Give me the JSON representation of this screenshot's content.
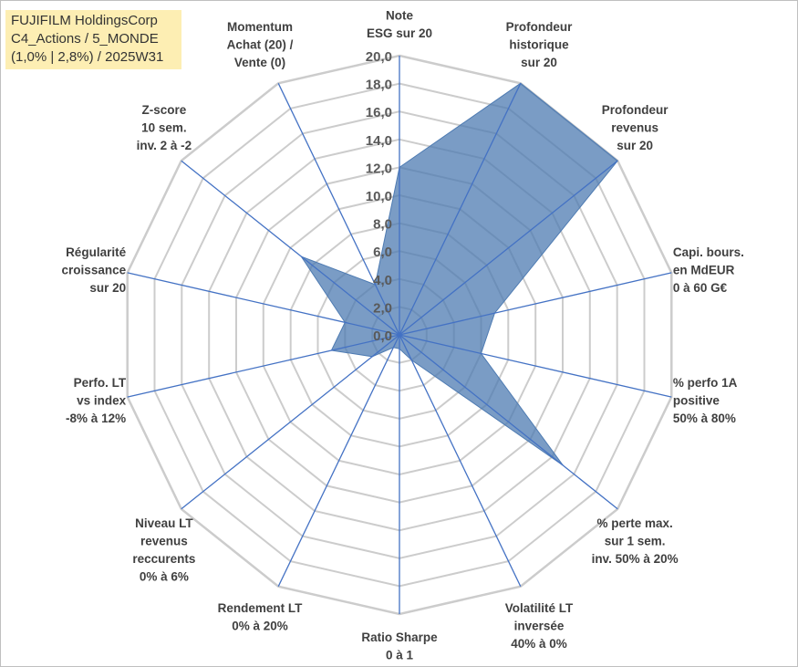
{
  "title_lines": [
    "FUJIFILM HoldingsCorp",
    "C4_Actions / 5_MONDE",
    "(1,0% | 2,8%) / 2025W31"
  ],
  "colors": {
    "fill": "#4e7bb2",
    "fill_opacity": 0.75,
    "spoke": "#4472c4",
    "ring": "#cccccc",
    "title_bg": "#fdeeb3"
  },
  "chart_data": {
    "type": "radar",
    "grid": true,
    "rmin": 0,
    "rmax": 20,
    "tick_labels": [
      "0,0",
      "2,0",
      "4,0",
      "6,0",
      "8,0",
      "10,0",
      "12,0",
      "14,0",
      "16,0",
      "18,0",
      "20,0"
    ],
    "axes": [
      {
        "label": [
          "Note",
          "ESG sur 20"
        ],
        "value": 12.0
      },
      {
        "label": [
          "Profondeur",
          "historique",
          "sur 20"
        ],
        "value": 20.0
      },
      {
        "label": [
          "Profondeur",
          "revenus",
          "sur 20"
        ],
        "value": 20.0
      },
      {
        "label": [
          "Capi. bours.",
          "en MdEUR",
          "0 à 60 G€"
        ],
        "value": 7.0
      },
      {
        "label": [
          "% perfo 1A",
          "positive",
          "50% à 80%"
        ],
        "value": 6.0
      },
      {
        "label": [
          "% perte max.",
          "sur 1 sem.",
          "inv. 50% à 20%"
        ],
        "value": 15.0
      },
      {
        "label": [
          "Volatilité LT",
          "inversée",
          "40% à 0%"
        ],
        "value": 2.0
      },
      {
        "label": [
          "Ratio Sharpe",
          "0 à 1"
        ],
        "value": 1.0
      },
      {
        "label": [
          "Rendement LT",
          "0% à 20%"
        ],
        "value": 1.0
      },
      {
        "label": [
          "Niveau LT",
          "revenus",
          "reccurents",
          "0% à 6%"
        ],
        "value": 2.5
      },
      {
        "label": [
          "Perfo. LT",
          "vs index",
          "-8% à 12%"
        ],
        "value": 5.0
      },
      {
        "label": [
          "Régularité",
          "croissance",
          "sur 20"
        ],
        "value": 4.0
      },
      {
        "label": [
          "Z-score",
          "10 sem.",
          "inv. 2 à -2"
        ],
        "value": 9.0
      },
      {
        "label": [
          "Momentum",
          "Achat (20) /",
          "Vente (0)"
        ],
        "value": 4.0
      }
    ]
  }
}
